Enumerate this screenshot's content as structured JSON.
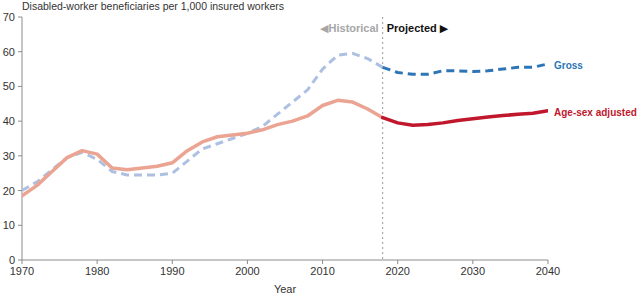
{
  "chart_data": {
    "type": "line",
    "ylabel": "Disabled-worker beneficiaries per 1,000 insured workers",
    "xlabel": "Year",
    "x": [
      1970,
      1972,
      1974,
      1976,
      1978,
      1980,
      1982,
      1984,
      1986,
      1988,
      1990,
      1992,
      1994,
      1996,
      1998,
      2000,
      2002,
      2004,
      2006,
      2008,
      2010,
      2012,
      2014,
      2016,
      2018,
      2020,
      2022,
      2024,
      2026,
      2028,
      2030,
      2032,
      2034,
      2036,
      2038,
      2040
    ],
    "xlim": [
      1970,
      2040
    ],
    "xticks": [
      1970,
      1980,
      1990,
      2000,
      2010,
      2020,
      2030,
      2040
    ],
    "ylim": [
      0,
      70
    ],
    "yticks": [
      0,
      10,
      20,
      30,
      40,
      50,
      60,
      70
    ],
    "grid": false,
    "series": [
      {
        "color": "#adc0e2",
        "line_style": "dashed",
        "values": [
          20,
          22.5,
          26,
          29.5,
          31,
          29,
          25.5,
          24.5,
          24.5,
          24.5,
          25,
          28.5,
          32,
          33.5,
          35,
          36.5,
          38.5,
          42,
          45.5,
          49,
          55,
          59,
          59.5,
          58,
          55.5,
          null,
          null,
          null,
          null,
          null,
          null,
          null,
          null,
          null,
          null,
          null
        ]
      },
      {
        "color": "#eba392",
        "line_style": "solid",
        "values": [
          18.5,
          21.5,
          25.5,
          29.5,
          31.5,
          30.5,
          26.5,
          26,
          26.5,
          27,
          28,
          31.5,
          34,
          35.5,
          36,
          36.5,
          37.5,
          39,
          40,
          41.5,
          44.5,
          46,
          45.5,
          43.5,
          41,
          null,
          null,
          null,
          null,
          null,
          null,
          null,
          null,
          null,
          null,
          null
        ]
      },
      {
        "name": "Gross",
        "color": "#2e75b6",
        "line_style": "dashed",
        "values": [
          null,
          null,
          null,
          null,
          null,
          null,
          null,
          null,
          null,
          null,
          null,
          null,
          null,
          null,
          null,
          null,
          null,
          null,
          null,
          null,
          null,
          null,
          null,
          null,
          55.5,
          54,
          53.5,
          53.5,
          54.5,
          54.5,
          54.3,
          54.5,
          55,
          55.5,
          55.5,
          56.5
        ]
      },
      {
        "name": "Age-sex adjusted",
        "color": "#c0172d",
        "line_style": "solid",
        "values": [
          null,
          null,
          null,
          null,
          null,
          null,
          null,
          null,
          null,
          null,
          null,
          null,
          null,
          null,
          null,
          null,
          null,
          null,
          null,
          null,
          null,
          null,
          null,
          null,
          41,
          39.5,
          38.8,
          39,
          39.5,
          40.2,
          40.7,
          41.2,
          41.6,
          42,
          42.3,
          43
        ]
      }
    ],
    "annotations": [
      {
        "x": 2018,
        "line_style": "dotted",
        "labels": [
          "◀Historical",
          "Projected ▶"
        ]
      }
    ]
  }
}
